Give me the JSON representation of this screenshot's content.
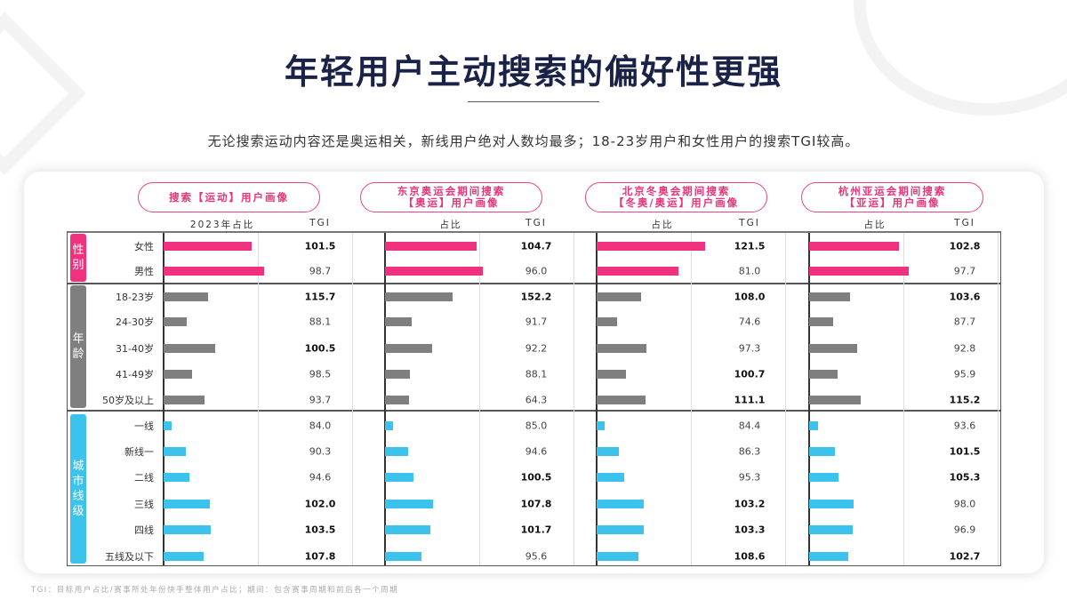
{
  "title": "年轻用户主动搜索的偏好性更强",
  "subtitle": "无论搜索运动内容还是奥运相关，新线用户绝对人数均最多；18-23岁用户和女性用户的搜索TGI较高。",
  "footnote": "TGI：目标用户占比/赛事所处年份快手整体用户占比；期间：包含赛事周期和前后各一个周期",
  "colors": {
    "gender": "#f0317e",
    "age": "#7f7f7f",
    "city": "#3bc3ee",
    "accent": "#e8357a",
    "title": "#1b2247"
  },
  "groups": [
    {
      "label": "性别",
      "key": "gender",
      "rows": [
        "女性",
        "男性"
      ]
    },
    {
      "label": "年龄",
      "key": "age",
      "rows": [
        "18-23岁",
        "24-30岁",
        "31-40岁",
        "41-49岁",
        "50岁及以上"
      ]
    },
    {
      "label": "城市线级",
      "key": "city",
      "rows": [
        "一线",
        "新线一",
        "二线",
        "三线",
        "四线",
        "五线及以下"
      ]
    }
  ],
  "panels": [
    {
      "title_lines": [
        "搜索【运动】用户画像"
      ],
      "share_label": "2023年占比",
      "tgi_label": "TGI",
      "share": [
        9.9,
        11.3,
        5.0,
        2.6,
        5.8,
        3.2,
        4.6,
        0.9,
        2.5,
        2.9,
        5.2,
        5.3,
        4.5
      ],
      "tgi": [
        "101.5",
        "98.7",
        "115.7",
        "88.1",
        "100.5",
        "98.5",
        "93.7",
        "84.0",
        "90.3",
        "94.6",
        "102.0",
        "103.5",
        "107.8"
      ]
    },
    {
      "title_lines": [
        "东京奥运会期间搜索",
        "【奥运】用户画像"
      ],
      "share_label": "占比",
      "tgi_label": "TGI",
      "share": [
        10.3,
        11.0,
        7.6,
        3.0,
        5.3,
        2.8,
        2.7,
        0.9,
        2.6,
        3.2,
        5.4,
        5.1,
        4.1
      ],
      "tgi": [
        "104.7",
        "96.0",
        "152.2",
        "91.7",
        "92.2",
        "88.1",
        "64.3",
        "85.0",
        "94.6",
        "100.5",
        "107.8",
        "101.7",
        "95.6"
      ]
    },
    {
      "title_lines": [
        "北京冬奥会期间搜索",
        "【冬奥/奥运】用户画像"
      ],
      "share_label": "占比",
      "tgi_label": "TGI",
      "share": [
        12.2,
        9.2,
        5.0,
        2.3,
        5.6,
        3.3,
        5.5,
        0.9,
        2.5,
        3.1,
        5.3,
        5.3,
        4.7
      ],
      "tgi": [
        "121.5",
        "81.0",
        "108.0",
        "74.6",
        "97.3",
        "100.7",
        "111.1",
        "84.4",
        "86.3",
        "95.3",
        "103.2",
        "103.3",
        "108.6"
      ]
    },
    {
      "title_lines": [
        "杭州亚运会期间搜索",
        "【亚运】用户画像"
      ],
      "share_label": "占比",
      "tgi_label": "TGI",
      "share": [
        10.1,
        11.2,
        4.6,
        2.7,
        5.4,
        3.2,
        5.8,
        1.0,
        2.9,
        3.3,
        5.0,
        4.9,
        4.4
      ],
      "tgi": [
        "102.8",
        "97.7",
        "103.6",
        "87.7",
        "92.8",
        "95.9",
        "115.2",
        "93.6",
        "101.5",
        "105.3",
        "98.0",
        "96.9",
        "102.7"
      ]
    }
  ]
}
